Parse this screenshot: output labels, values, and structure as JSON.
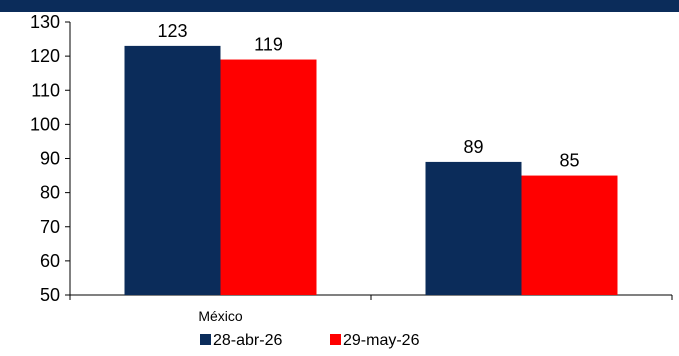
{
  "chart_data": {
    "type": "bar",
    "categories": [
      "México",
      ""
    ],
    "series": [
      {
        "name": "28-abr-26",
        "values": [
          123,
          89
        ],
        "color": "#0b2c5a"
      },
      {
        "name": "29-may-26",
        "values": [
          119,
          85
        ],
        "color": "#ff0000"
      }
    ],
    "ylim": [
      50,
      130
    ],
    "yticks": [
      50,
      60,
      70,
      80,
      90,
      100,
      110,
      120,
      130
    ],
    "grid": false,
    "legend": "bottom-center"
  },
  "colors": {
    "header": "#0b2c5a",
    "axis": "#000000"
  }
}
